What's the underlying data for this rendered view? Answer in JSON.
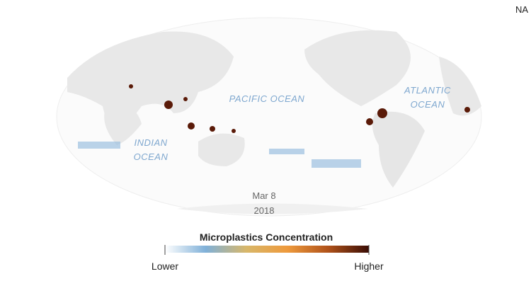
{
  "corner_label": "NA",
  "ocean_labels": [
    [
      "PACIFIC OCEAN"
    ],
    [
      "ATLANTIC",
      "OCEAN"
    ],
    [
      "INDIAN",
      "OCEAN"
    ]
  ],
  "date": {
    "day": "Mar 8",
    "year": "2018"
  },
  "legend": {
    "title": "Microplastics Concentration",
    "low": "Lower",
    "high": "Higher"
  }
}
